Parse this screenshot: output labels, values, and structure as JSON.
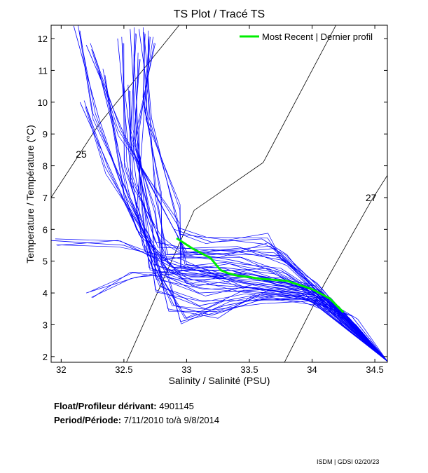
{
  "chart_data": {
    "type": "line",
    "title": "TS Plot / Tracé TS",
    "xlabel": "Salinity / Salinité (PSU)",
    "ylabel": "Temperature / Température (°C)",
    "xlim": [
      31.92,
      34.6
    ],
    "ylim": [
      1.82,
      12.42
    ],
    "xticks": [
      32,
      32.5,
      33,
      33.5,
      34,
      34.5
    ],
    "xtick_labels": [
      "32",
      "32.5",
      "33",
      "33.5",
      "34",
      "34.5"
    ],
    "yticks": [
      2,
      3,
      4,
      5,
      6,
      7,
      8,
      9,
      10,
      11,
      12
    ],
    "ytick_labels": [
      "2",
      "3",
      "4",
      "5",
      "6",
      "7",
      "8",
      "9",
      "10",
      "11",
      "12"
    ],
    "grid": false,
    "legend": {
      "placement": "top-right",
      "entries": [
        "Most Recent | Dernier profil"
      ]
    },
    "density_contours": [
      {
        "label": "25",
        "label_at": [
          32.16,
          8.25
        ],
        "points": [
          [
            31.92,
            7.0
          ],
          [
            32.3,
            9.3
          ],
          [
            32.94,
            12.42
          ]
        ]
      },
      {
        "label": "",
        "points": [
          [
            32.52,
            1.82
          ],
          [
            33.06,
            6.6
          ],
          [
            33.61,
            8.1
          ],
          [
            34.19,
            12.42
          ]
        ]
      },
      {
        "label": "27",
        "label_at": [
          34.47,
          6.89
        ],
        "points": [
          [
            33.78,
            1.82
          ],
          [
            34.1,
            4.3
          ],
          [
            34.47,
            6.89
          ],
          [
            34.6,
            7.7
          ]
        ]
      }
    ],
    "profiles_color": "#0000ff",
    "profiles": [
      [
        [
          32.55,
          12.3
        ],
        [
          32.6,
          9
        ],
        [
          32.7,
          6.5
        ],
        [
          32.85,
          5
        ],
        [
          33.0,
          4.3
        ],
        [
          33.4,
          4.2
        ],
        [
          33.9,
          4.0
        ],
        [
          34.2,
          3.4
        ],
        [
          34.6,
          1.85
        ]
      ],
      [
        [
          32.3,
          11
        ],
        [
          32.55,
          7
        ],
        [
          32.8,
          4.5
        ],
        [
          33.0,
          3.2
        ],
        [
          33.3,
          3.6
        ],
        [
          33.7,
          3.9
        ],
        [
          34.0,
          3.9
        ],
        [
          34.3,
          3.1
        ],
        [
          34.6,
          1.85
        ]
      ],
      [
        [
          32.9,
          6
        ],
        [
          33.2,
          5.6
        ],
        [
          33.6,
          5.7
        ],
        [
          33.8,
          5.2
        ],
        [
          34.0,
          4.2
        ],
        [
          34.3,
          3.2
        ],
        [
          34.6,
          1.85
        ]
      ],
      [
        [
          32.1,
          12.4
        ],
        [
          32.3,
          9.5
        ],
        [
          32.6,
          6
        ],
        [
          32.9,
          4.8
        ],
        [
          33.3,
          4.8
        ],
        [
          33.7,
          4.6
        ],
        [
          34.0,
          4.1
        ],
        [
          34.35,
          3.0
        ],
        [
          34.6,
          1.85
        ]
      ],
      [
        [
          31.92,
          5.65
        ],
        [
          32.5,
          5.5
        ],
        [
          32.9,
          4.9
        ],
        [
          33.5,
          4.3
        ],
        [
          34.0,
          4.0
        ],
        [
          34.6,
          1.85
        ]
      ],
      [
        [
          32.2,
          4.0
        ],
        [
          32.6,
          4.5
        ],
        [
          32.9,
          4.6
        ],
        [
          33.5,
          4.6
        ],
        [
          34.0,
          4.1
        ],
        [
          34.6,
          1.85
        ]
      ],
      [
        [
          32.62,
          12.3
        ],
        [
          32.7,
          10
        ],
        [
          32.75,
          7
        ],
        [
          32.85,
          5.2
        ],
        [
          33.2,
          5.2
        ],
        [
          33.7,
          5.4
        ],
        [
          34.0,
          4.3
        ],
        [
          34.6,
          1.85
        ]
      ],
      [
        [
          32.45,
          12
        ],
        [
          32.55,
          8
        ],
        [
          32.65,
          5.5
        ],
        [
          32.8,
          4.2
        ],
        [
          33.1,
          3.6
        ],
        [
          33.5,
          3.9
        ],
        [
          33.9,
          3.9
        ],
        [
          34.3,
          3.1
        ],
        [
          34.6,
          1.85
        ]
      ],
      [
        [
          32.2,
          11.8
        ],
        [
          32.5,
          9
        ],
        [
          32.9,
          6
        ],
        [
          33.0,
          5.3
        ],
        [
          33.4,
          5.0
        ],
        [
          33.8,
          4.6
        ],
        [
          34.1,
          3.8
        ],
        [
          34.6,
          1.85
        ]
      ],
      [
        [
          32.7,
          12
        ],
        [
          32.65,
          9
        ],
        [
          32.6,
          6.5
        ],
        [
          32.75,
          4.9
        ],
        [
          33.0,
          4.4
        ],
        [
          33.5,
          4.5
        ],
        [
          34.0,
          4.1
        ],
        [
          34.6,
          1.85
        ]
      ],
      [
        [
          32.58,
          11.5
        ],
        [
          32.62,
          8.5
        ],
        [
          32.68,
          6
        ],
        [
          32.8,
          4.6
        ],
        [
          33.1,
          4.0
        ],
        [
          33.6,
          4.1
        ],
        [
          34.0,
          3.95
        ],
        [
          34.6,
          1.85
        ]
      ],
      [
        [
          32.5,
          10.5
        ],
        [
          32.6,
          7.5
        ],
        [
          32.75,
          5.6
        ],
        [
          33.0,
          5.4
        ],
        [
          33.4,
          5.3
        ],
        [
          33.8,
          5.0
        ],
        [
          34.05,
          4.0
        ],
        [
          34.6,
          1.85
        ]
      ],
      [
        [
          32.15,
          10
        ],
        [
          32.4,
          7.8
        ],
        [
          32.7,
          5.2
        ],
        [
          32.9,
          3.6
        ],
        [
          33.2,
          3.3
        ],
        [
          33.6,
          3.8
        ],
        [
          34.0,
          3.8
        ],
        [
          34.6,
          1.85
        ]
      ],
      [
        [
          32.66,
          12.2
        ],
        [
          32.72,
          9.5
        ],
        [
          32.9,
          6.6
        ],
        [
          33.0,
          4.9
        ],
        [
          33.3,
          4.6
        ],
        [
          33.8,
          4.3
        ],
        [
          34.1,
          3.9
        ],
        [
          34.6,
          1.85
        ]
      ]
    ],
    "most_recent": {
      "name": "Most Recent | Dernier profil",
      "color": "#00ee00",
      "points": [
        [
          32.92,
          5.72
        ],
        [
          33.05,
          5.39
        ],
        [
          33.19,
          5.1
        ],
        [
          33.27,
          4.72
        ],
        [
          33.33,
          4.62
        ],
        [
          33.41,
          4.54
        ],
        [
          33.5,
          4.5
        ],
        [
          33.58,
          4.45
        ],
        [
          33.8,
          4.38
        ],
        [
          34.0,
          4.12
        ],
        [
          34.14,
          3.83
        ],
        [
          34.25,
          3.39
        ]
      ]
    }
  },
  "info": {
    "float_label": "Float/Profileur dérivant:",
    "float_id": "4901145",
    "period_label": "Period/Période:",
    "period_start": "7/11/2010",
    "period_sep": "to/à",
    "period_end": "9/8/2014"
  },
  "credit": "ISDM | GDSI  02/20/23"
}
